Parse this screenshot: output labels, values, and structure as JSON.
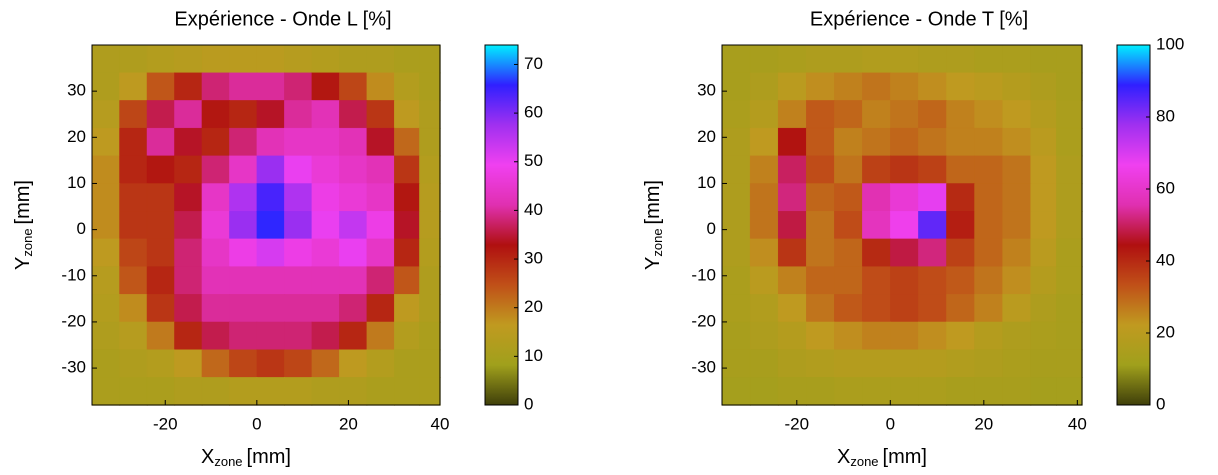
{
  "chart_data": [
    {
      "type": "heatmap",
      "title": "Expérience - Onde L [%]",
      "xlabel": [
        "X",
        "zone",
        "[mm]"
      ],
      "ylabel": [
        "Y",
        "zone",
        "[mm]"
      ],
      "x": [
        -33,
        -27,
        -21,
        -15,
        -9,
        -3,
        3,
        9,
        15,
        21,
        27,
        33,
        38
      ],
      "y": [
        37,
        31,
        25,
        19,
        13,
        7,
        1,
        -5,
        -11,
        -17,
        -23,
        -29,
        -35
      ],
      "values": [
        [
          12,
          12,
          13,
          14,
          15,
          15,
          15,
          14,
          13,
          12,
          12,
          11,
          11
        ],
        [
          12,
          16,
          24,
          30,
          38,
          40,
          40,
          38,
          32,
          26,
          18,
          13,
          11
        ],
        [
          14,
          26,
          36,
          40,
          32,
          30,
          34,
          40,
          42,
          36,
          28,
          16,
          12
        ],
        [
          16,
          30,
          40,
          34,
          30,
          38,
          42,
          44,
          44,
          42,
          34,
          22,
          12
        ],
        [
          18,
          30,
          32,
          30,
          38,
          44,
          58,
          50,
          46,
          44,
          42,
          28,
          13
        ],
        [
          18,
          28,
          28,
          34,
          44,
          56,
          64,
          56,
          48,
          46,
          44,
          32,
          14
        ],
        [
          18,
          28,
          28,
          36,
          46,
          58,
          66,
          58,
          50,
          54,
          48,
          34,
          14
        ],
        [
          16,
          26,
          28,
          38,
          44,
          48,
          52,
          48,
          46,
          50,
          44,
          30,
          13
        ],
        [
          14,
          24,
          30,
          38,
          42,
          42,
          42,
          42,
          42,
          42,
          38,
          24,
          12
        ],
        [
          13,
          18,
          28,
          36,
          40,
          40,
          40,
          40,
          40,
          38,
          30,
          16,
          12
        ],
        [
          12,
          14,
          20,
          30,
          36,
          38,
          38,
          38,
          36,
          30,
          20,
          13,
          11
        ],
        [
          11,
          12,
          13,
          16,
          22,
          26,
          28,
          26,
          22,
          16,
          13,
          11,
          11
        ],
        [
          11,
          11,
          11,
          12,
          12,
          13,
          13,
          13,
          12,
          12,
          11,
          11,
          11
        ]
      ],
      "xlim": [
        -36,
        40
      ],
      "ylim": [
        -38,
        40
      ],
      "xticks": [
        -20,
        0,
        20,
        40
      ],
      "yticks": [
        -30,
        -20,
        -10,
        0,
        10,
        20,
        30
      ],
      "clim": [
        0,
        74
      ],
      "cticks": [
        0,
        10,
        20,
        30,
        40,
        50,
        60,
        70
      ],
      "colormap": [
        "#3f3f0a",
        "#a0a01c",
        "#c09a20",
        "#c05018",
        "#b01010",
        "#e030b0",
        "#f040f0",
        "#a030f0",
        "#3020ff",
        "#00f0ff"
      ]
    },
    {
      "type": "heatmap",
      "title": "Expérience - Onde T [%]",
      "xlabel": [
        "X",
        "zone",
        "[mm]"
      ],
      "ylabel": [
        "Y",
        "zone",
        "[mm]"
      ],
      "x": [
        -33,
        -27,
        -21,
        -15,
        -9,
        -3,
        3,
        9,
        15,
        21,
        27,
        33,
        38
      ],
      "y": [
        37,
        31,
        25,
        19,
        13,
        7,
        1,
        -5,
        -11,
        -17,
        -23,
        -29,
        -35
      ],
      "values": [
        [
          14,
          14,
          15,
          16,
          16,
          17,
          17,
          16,
          16,
          15,
          15,
          14,
          14
        ],
        [
          14,
          16,
          20,
          24,
          26,
          28,
          26,
          24,
          22,
          20,
          18,
          16,
          14
        ],
        [
          15,
          18,
          26,
          32,
          30,
          26,
          28,
          30,
          26,
          24,
          22,
          18,
          15
        ],
        [
          16,
          22,
          44,
          32,
          26,
          28,
          30,
          28,
          26,
          26,
          24,
          20,
          15
        ],
        [
          16,
          26,
          50,
          34,
          28,
          36,
          38,
          36,
          30,
          30,
          28,
          22,
          16
        ],
        [
          16,
          28,
          52,
          30,
          32,
          56,
          62,
          68,
          40,
          30,
          28,
          22,
          16
        ],
        [
          16,
          28,
          48,
          28,
          34,
          58,
          66,
          84,
          42,
          30,
          28,
          22,
          16
        ],
        [
          16,
          24,
          38,
          28,
          30,
          40,
          48,
          52,
          36,
          30,
          26,
          20,
          15
        ],
        [
          15,
          20,
          26,
          30,
          30,
          34,
          36,
          34,
          32,
          28,
          24,
          18,
          15
        ],
        [
          15,
          17,
          22,
          28,
          32,
          34,
          36,
          34,
          30,
          26,
          20,
          16,
          14
        ],
        [
          14,
          16,
          18,
          22,
          24,
          26,
          26,
          24,
          22,
          18,
          16,
          15,
          14
        ],
        [
          14,
          14,
          16,
          17,
          18,
          18,
          18,
          18,
          17,
          16,
          15,
          14,
          14
        ],
        [
          13,
          13,
          14,
          14,
          15,
          15,
          15,
          15,
          14,
          14,
          14,
          13,
          13
        ]
      ],
      "xlim": [
        -36,
        41
      ],
      "ylim": [
        -38,
        40
      ],
      "xticks": [
        -20,
        0,
        20,
        40
      ],
      "yticks": [
        -30,
        -20,
        -10,
        0,
        10,
        20,
        30
      ],
      "clim": [
        0,
        100
      ],
      "cticks": [
        0,
        20,
        40,
        60,
        80,
        100
      ],
      "colormap": [
        "#3f3f0a",
        "#a0a01c",
        "#c09a20",
        "#c05018",
        "#b01010",
        "#e030b0",
        "#f040f0",
        "#a030f0",
        "#3020ff",
        "#00f0ff"
      ]
    }
  ]
}
